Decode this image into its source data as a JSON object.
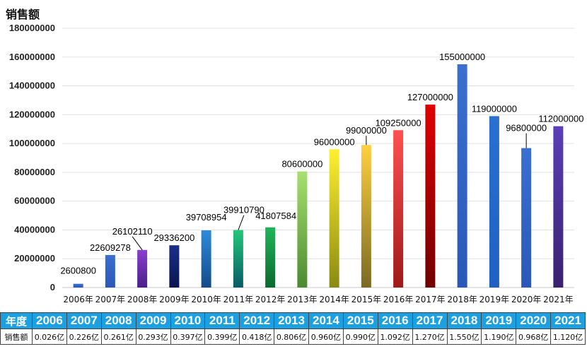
{
  "chart_data": {
    "type": "bar",
    "ylabel": "销售额",
    "ylim": [
      0,
      180000000
    ],
    "yticks": [
      "0",
      "20000000",
      "40000000",
      "60000000",
      "80000000",
      "100000000",
      "120000000",
      "140000000",
      "160000000",
      "180000000"
    ],
    "categories": [
      "2006年",
      "2007年",
      "2008年",
      "2009年",
      "2010年",
      "2011年",
      "2012年",
      "2013年",
      "2014年",
      "2015年",
      "2016年",
      "2017年",
      "2018年",
      "2019年",
      "2020年",
      "2021年"
    ],
    "values": [
      2600800,
      22609278,
      26102110,
      29336200,
      39708954,
      39910790,
      41807584,
      80600000,
      96000000,
      99000000,
      109250000,
      127000000,
      155000000,
      119000000,
      96800000,
      112000000
    ],
    "data_labels": [
      "2600800",
      "22609278",
      "26102110",
      "29336200",
      "39708954",
      "39910790",
      "41807584",
      "80600000",
      "96000000",
      "99000000",
      "109250000",
      "127000000",
      "155000000",
      "119000000",
      "96800000",
      "112000000"
    ],
    "bar_colors": [
      [
        "#3a6fd0",
        "#2a58b8"
      ],
      [
        "#3a6fd0",
        "#2a58b8"
      ],
      [
        "#8a3fd0",
        "#4a1f8a"
      ],
      [
        "#1a2e8a",
        "#0a1550"
      ],
      [
        "#2e8bd8",
        "#134a8a"
      ],
      [
        "#22c878",
        "#0a5a68"
      ],
      [
        "#20b45a",
        "#0a6a30"
      ],
      [
        "#a8e070",
        "#4a8a30"
      ],
      [
        "#fff030",
        "#8a8a10"
      ],
      [
        "#ffd040",
        "#7a6a20"
      ],
      [
        "#ff5050",
        "#a01818"
      ],
      [
        "#e00000",
        "#700000"
      ],
      [
        "#3a6fd0",
        "#2a58b8"
      ],
      [
        "#2a70d0",
        "#2060c0"
      ],
      [
        "#3a6fd0",
        "#2a58b8"
      ],
      [
        "#5a3fb8",
        "#3a2070"
      ]
    ],
    "grid": true
  },
  "table": {
    "header_label": "年度",
    "years": [
      "2006",
      "2007",
      "2008",
      "2009",
      "2010",
      "2011",
      "2012",
      "2013",
      "2014",
      "2015",
      "2016",
      "2017",
      "2018",
      "2019",
      "2020",
      "2021"
    ],
    "row_label": "销售额",
    "values": [
      "0.026亿",
      "0.226亿",
      "0.261亿",
      "0.293亿",
      "0.397亿",
      "0.399亿",
      "0.418亿",
      "0.806亿",
      "0.960亿",
      "0.990亿",
      "1.092亿",
      "1.270亿",
      "1.550亿",
      "1.190亿",
      "0.968亿",
      "1.120亿"
    ]
  }
}
